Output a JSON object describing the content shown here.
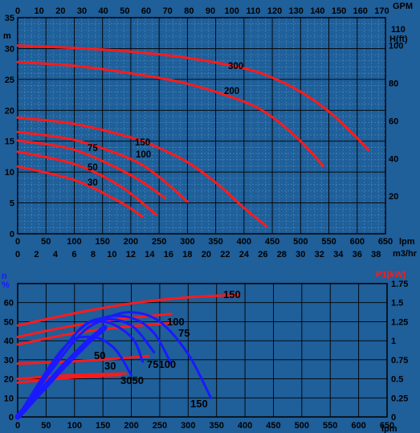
{
  "chart_data": [
    {
      "type": "line",
      "title": "",
      "xlabel": "lpm",
      "x_secondary_top": {
        "label": "GPM",
        "ticks": [
          "0",
          "10",
          "20",
          "30",
          "40",
          "50",
          "60",
          "70",
          "80",
          "90",
          "100",
          "110",
          "120",
          "130",
          "140",
          "150",
          "160",
          "170"
        ]
      },
      "x_secondary_bottom": {
        "label": "m3/hr",
        "ticks": [
          "0",
          "2",
          "4",
          "6",
          "8",
          "10",
          "12",
          "14",
          "16",
          "18",
          "20",
          "22",
          "24",
          "26",
          "28",
          "30",
          "32",
          "34",
          "36",
          "38"
        ]
      },
      "ylabel": "m",
      "y_secondary": {
        "label": "H(ft)",
        "ticks": [
          "20",
          "40",
          "60",
          "80",
          "100",
          "110"
        ]
      },
      "xlim": [
        0,
        650
      ],
      "ylim": [
        0,
        35
      ],
      "x_ticks": [
        "0",
        "50",
        "100",
        "150",
        "200",
        "250",
        "300",
        "350",
        "400",
        "450",
        "500",
        "550",
        "600",
        "650"
      ],
      "y_ticks": [
        "0",
        "5",
        "10",
        "15",
        "20",
        "25",
        "30",
        "35"
      ],
      "grid": true,
      "series": [
        {
          "name": "300",
          "x": [
            0,
            100,
            200,
            300,
            400,
            450,
            500,
            550,
            600,
            620
          ],
          "y": [
            30.5,
            30.1,
            29.5,
            28.5,
            26.8,
            25.3,
            23.0,
            19.8,
            15.5,
            13.5
          ]
        },
        {
          "name": "200",
          "x": [
            0,
            100,
            200,
            300,
            400,
            450,
            500,
            540
          ],
          "y": [
            27.8,
            27.2,
            26.0,
            24.3,
            21.4,
            18.9,
            15.0,
            11.0
          ]
        },
        {
          "name": "150",
          "x": [
            0,
            100,
            200,
            250,
            300,
            350,
            400,
            440
          ],
          "y": [
            18.8,
            17.8,
            15.6,
            13.9,
            11.6,
            8.3,
            4.2,
            1.2
          ]
        },
        {
          "name": "100",
          "x": [
            0,
            100,
            200,
            250,
            300
          ],
          "y": [
            16.5,
            15.2,
            12.1,
            9.2,
            5.2
          ]
        },
        {
          "name": "75",
          "x": [
            0,
            100,
            200,
            260
          ],
          "y": [
            15.1,
            13.6,
            9.5,
            5.8
          ]
        },
        {
          "name": "50",
          "x": [
            0,
            100,
            180,
            245
          ],
          "y": [
            13.3,
            11.3,
            7.8,
            3.1
          ]
        },
        {
          "name": "30",
          "x": [
            0,
            100,
            180,
            220
          ],
          "y": [
            10.9,
            8.7,
            5.2,
            2.8
          ]
        }
      ],
      "series_color": "#ff1a1a"
    },
    {
      "type": "line",
      "title": "",
      "xlabel": "lpm",
      "ylabel": "n %",
      "y_secondary": {
        "label": "P1(kW)",
        "ticks": [
          "0",
          "0.25",
          "0.5",
          "0.75",
          "1",
          "1.25",
          "1.5",
          "1.75"
        ]
      },
      "xlim": [
        0,
        650
      ],
      "ylim": [
        0,
        70
      ],
      "x_ticks": [
        "0",
        "50",
        "100",
        "150",
        "200",
        "250",
        "300",
        "350",
        "400",
        "450",
        "500",
        "550",
        "600",
        "650"
      ],
      "y_ticks": [
        "0",
        "10",
        "20",
        "30",
        "40",
        "50",
        "60"
      ],
      "grid": true,
      "power_series": [
        {
          "name": "150",
          "x": [
            0,
            100,
            200,
            300,
            390
          ],
          "y": [
            1.2,
            1.36,
            1.49,
            1.57,
            1.6
          ]
        },
        {
          "name": "100",
          "x": [
            0,
            100,
            200,
            270
          ],
          "y": [
            1.05,
            1.2,
            1.3,
            1.35
          ]
        },
        {
          "name": "75",
          "x": [
            0,
            100,
            200,
            270
          ],
          "y": [
            0.95,
            1.1,
            1.19,
            1.23
          ]
        },
        {
          "name": "50",
          "x": [
            0,
            100,
            200,
            230
          ],
          "y": [
            0.7,
            0.73,
            0.78,
            0.8
          ]
        },
        {
          "name": "30",
          "x": [
            0,
            100,
            190
          ],
          "y": [
            0.5,
            0.55,
            0.57
          ]
        },
        {
          "name": "30 ",
          "x": [
            0,
            100,
            180
          ],
          "y": [
            0.45,
            0.52,
            0.55
          ]
        }
      ],
      "efficiency_series": [
        {
          "name": "150",
          "x": [
            0,
            100,
            150,
            200,
            250,
            300,
            340
          ],
          "y": [
            0,
            40,
            51,
            55,
            50,
            33,
            10
          ]
        },
        {
          "name": "100",
          "x": [
            0,
            100,
            150,
            200,
            240,
            270
          ],
          "y": [
            0,
            43,
            52,
            52,
            44,
            28
          ]
        },
        {
          "name": "75",
          "x": [
            0,
            100,
            150,
            200,
            240
          ],
          "y": [
            0,
            43,
            51,
            48,
            34
          ]
        },
        {
          "name": "50",
          "x": [
            0,
            100,
            150,
            200,
            220
          ],
          "y": [
            0,
            43,
            50,
            42,
            29
          ]
        },
        {
          "name": "30",
          "x": [
            0,
            80,
            130,
            170,
            200
          ],
          "y": [
            0,
            36,
            42,
            36,
            22
          ]
        }
      ],
      "colors": {
        "power": "#ff1a1a",
        "efficiency": "#1a1aff"
      }
    }
  ],
  "labels": {
    "top_gpm": "GPM",
    "top_m": "m",
    "top_hft_110": "110",
    "top_hft": "H(ft)",
    "top_lpm": "lpm",
    "top_m3hr": "m3/hr",
    "bot_n": "n",
    "bot_pct": "%",
    "bot_p1": "P1(kW)",
    "bot_lpm": "lpm",
    "curve_300": "300",
    "curve_200": "200",
    "curve_150": "150",
    "curve_100": "100",
    "curve_75": "75",
    "curve_50": "50",
    "curve_30": "30",
    "eff_150_top": "150",
    "eff_100": "100",
    "eff_75": "75",
    "eff_50": "50",
    "eff_30": "30",
    "eff_3050": "3050",
    "eff_75100": "75100",
    "eff_150_bottom": "150"
  }
}
